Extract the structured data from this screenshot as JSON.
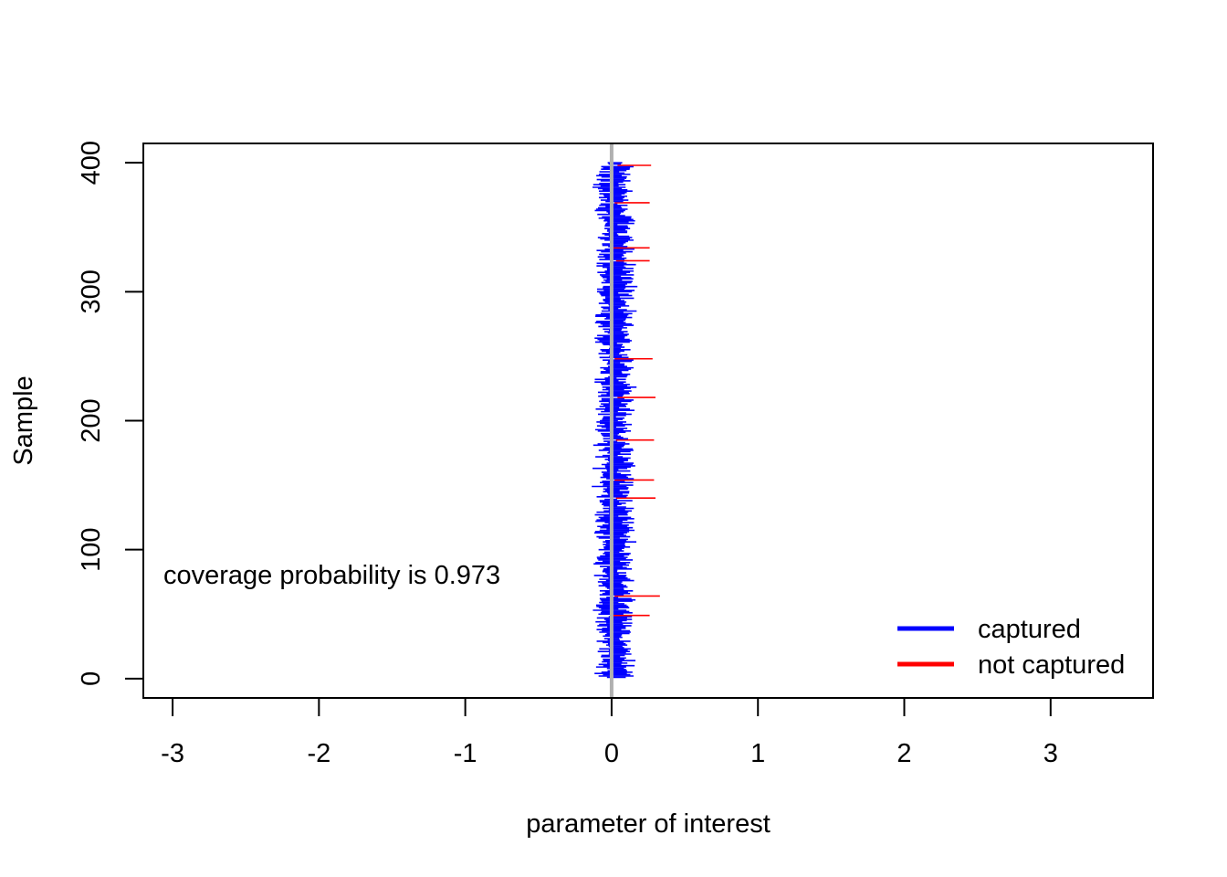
{
  "chart_data": {
    "type": "interval",
    "title": "",
    "xlabel": "parameter of interest",
    "ylabel": "Sample",
    "xlim": [
      -3.2,
      3.7
    ],
    "ylim": [
      -15,
      415
    ],
    "x_ticks": [
      -3,
      -2,
      -1,
      0,
      1,
      2,
      3
    ],
    "x_tick_labels": [
      "-3",
      "-2",
      "-1",
      "0",
      "1",
      "2",
      "3"
    ],
    "y_ticks": [
      0,
      100,
      200,
      300,
      400
    ],
    "y_tick_labels": [
      "0",
      "100",
      "200",
      "300",
      "400"
    ],
    "reference_line": {
      "x": 0,
      "color": "#b0b0b0"
    },
    "n_samples": 400,
    "interval_center_range": [
      -0.02,
      0.06
    ],
    "interval_half_width_range": [
      0.04,
      0.12
    ],
    "not_captured_intervals": [
      {
        "sample": 64,
        "lower": 0.02,
        "upper": 0.33
      },
      {
        "sample": 49,
        "lower": 0.01,
        "upper": 0.26
      },
      {
        "sample": 140,
        "lower": 0.03,
        "upper": 0.3
      },
      {
        "sample": 154,
        "lower": 0.02,
        "upper": 0.29
      },
      {
        "sample": 185,
        "lower": 0.03,
        "upper": 0.29
      },
      {
        "sample": 218,
        "lower": 0.04,
        "upper": 0.3
      },
      {
        "sample": 248,
        "lower": 0.02,
        "upper": 0.28
      },
      {
        "sample": 324,
        "lower": 0.03,
        "upper": 0.26
      },
      {
        "sample": 334,
        "lower": 0.01,
        "upper": 0.26
      },
      {
        "sample": 369,
        "lower": 0.02,
        "upper": 0.26
      },
      {
        "sample": 398,
        "lower": 0.04,
        "upper": 0.27
      }
    ],
    "series": [
      {
        "name": "captured",
        "color": "#0000ff"
      },
      {
        "name": "not captured",
        "color": "#ff0000"
      }
    ],
    "legend": {
      "position": "bottom-right"
    },
    "annotation": "coverage probability is 0.973",
    "grid": false
  }
}
